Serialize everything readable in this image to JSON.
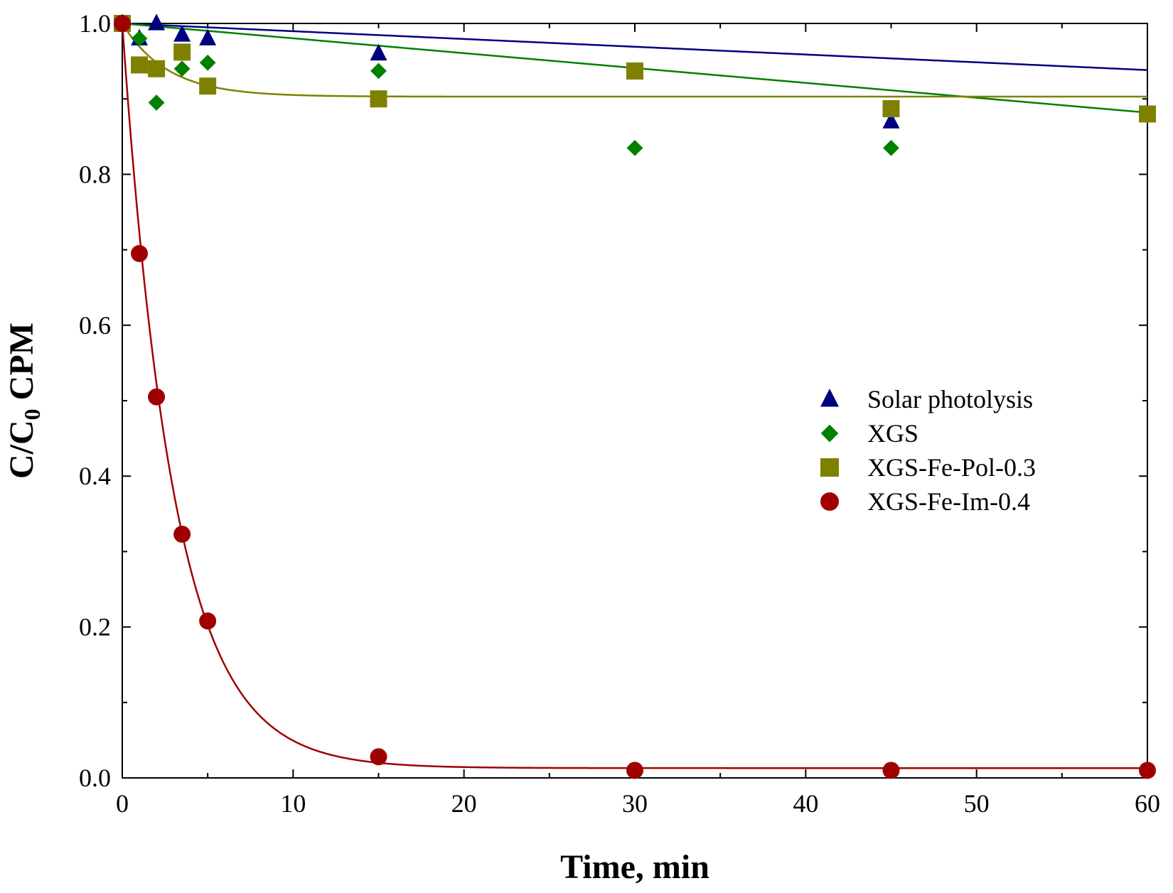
{
  "chart_data": {
    "type": "scatter",
    "title": "",
    "xlabel": "Time, min",
    "ylabel_main": "C/C",
    "ylabel_sub": "0",
    "ylabel_tail": " CPM",
    "xlim": [
      0,
      60
    ],
    "ylim": [
      0,
      1.0
    ],
    "x_ticks": [
      0,
      10,
      20,
      30,
      40,
      50,
      60
    ],
    "x_tick_labels": [
      "0",
      "10",
      "20",
      "30",
      "40",
      "50",
      "60"
    ],
    "y_ticks": [
      0,
      0.2,
      0.4,
      0.6,
      0.8,
      1.0
    ],
    "y_tick_labels": [
      "0.0",
      "0.2",
      "0.4",
      "0.6",
      "0.8",
      "1.0"
    ],
    "grid": false,
    "legend_position": "center-right",
    "series": [
      {
        "name": "Solar photolysis",
        "marker": "triangle",
        "color": "#000080",
        "x": [
          0,
          1,
          2,
          3.5,
          5,
          15,
          30,
          45
        ],
        "y": [
          1.0,
          0.98,
          1.0,
          0.985,
          0.98,
          0.96,
          0.935,
          0.87
        ],
        "fit": {
          "kind": "linear",
          "a": 1.0,
          "b": -0.00103
        }
      },
      {
        "name": "XGS",
        "marker": "diamond",
        "color": "#008000",
        "x": [
          0,
          1,
          2,
          3.5,
          5,
          15,
          30,
          45
        ],
        "y": [
          1.0,
          0.98,
          0.895,
          0.94,
          0.948,
          0.937,
          0.835,
          0.835
        ],
        "fit": {
          "kind": "linear",
          "a": 1.0,
          "b": -0.00197
        }
      },
      {
        "name": "XGS-Fe-Pol-0.3",
        "marker": "square",
        "color": "#808000",
        "x": [
          0,
          1,
          2,
          3.5,
          5,
          15,
          30,
          45,
          60
        ],
        "y": [
          1.0,
          0.945,
          0.94,
          0.962,
          0.917,
          0.9,
          0.937,
          0.887,
          0.88
        ],
        "fit": {
          "kind": "exp",
          "plateau": 0.903,
          "amp": 0.097,
          "k": 0.38
        }
      },
      {
        "name": "XGS-Fe-Im-0.4",
        "marker": "circle",
        "color": "#A00000",
        "x": [
          0,
          1,
          2,
          3.5,
          5,
          15,
          30,
          45,
          60
        ],
        "y": [
          1.0,
          0.695,
          0.505,
          0.323,
          0.208,
          0.028,
          0.01,
          0.01,
          0.01
        ],
        "fit": {
          "kind": "exp",
          "plateau": 0.013,
          "amp": 0.987,
          "k": 0.33
        }
      }
    ]
  }
}
